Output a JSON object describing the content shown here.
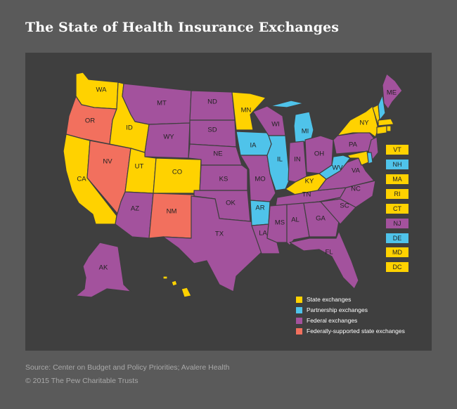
{
  "title": "The State of Health Insurance Exchanges",
  "colors": {
    "state": "#ffd200",
    "partnership": "#4fc3ea",
    "federal": "#a3529d",
    "federally_supported": "#f2705e"
  },
  "legend": [
    {
      "label": "State exchanges",
      "category": "state"
    },
    {
      "label": "Partnership exchanges",
      "category": "partnership"
    },
    {
      "label": "Federal exchanges",
      "category": "federal"
    },
    {
      "label": "Federally-supported state exchanges",
      "category": "federally_supported"
    }
  ],
  "states": {
    "WA": "state",
    "OR": "federally_supported",
    "CA": "state",
    "NV": "federally_supported",
    "ID": "state",
    "MT": "federal",
    "WY": "federal",
    "UT": "state",
    "CO": "state",
    "AZ": "federal",
    "NM": "federally_supported",
    "ND": "federal",
    "SD": "federal",
    "NE": "federal",
    "KS": "federal",
    "OK": "federal",
    "TX": "federal",
    "MN": "state",
    "IA": "partnership",
    "MO": "federal",
    "AR": "partnership",
    "LA": "federal",
    "WI": "federal",
    "IL": "partnership",
    "MI": "partnership",
    "IN": "federal",
    "OH": "federal",
    "KY": "state",
    "TN": "federal",
    "MS": "federal",
    "AL": "federal",
    "GA": "federal",
    "FL": "federal",
    "SC": "federal",
    "NC": "federal",
    "VA": "federal",
    "WV": "partnership",
    "PA": "federal",
    "NY": "state",
    "ME": "federal",
    "AK": "federal",
    "HI": "state",
    "VT": "state",
    "NH": "partnership",
    "MA": "state",
    "RI": "state",
    "CT": "state",
    "NJ": "federal",
    "DE": "partnership",
    "MD": "state",
    "DC": "state"
  },
  "small_states": [
    {
      "code": "VT",
      "category": "state"
    },
    {
      "code": "NH",
      "category": "partnership"
    },
    {
      "code": "MA",
      "category": "state"
    },
    {
      "code": "RI",
      "category": "state"
    },
    {
      "code": "CT",
      "category": "state"
    },
    {
      "code": "NJ",
      "category": "federal"
    },
    {
      "code": "DE",
      "category": "partnership"
    },
    {
      "code": "MD",
      "category": "state"
    },
    {
      "code": "DC",
      "category": "state"
    }
  ],
  "source": "Source: Center on Budget and Policy Priorities; Avalere Health",
  "copyright": "© 2015 The Pew Charitable Trusts"
}
